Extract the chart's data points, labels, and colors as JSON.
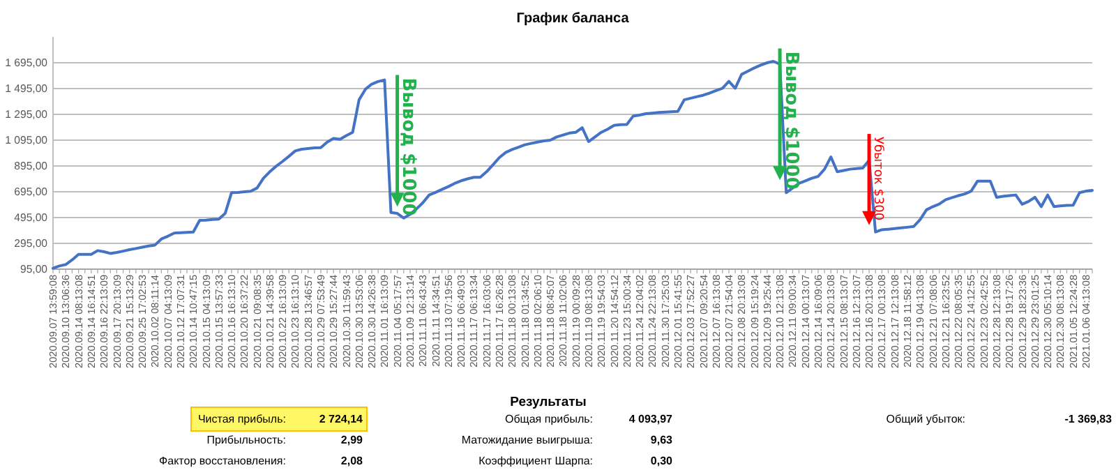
{
  "chart_data": [
    {
      "type": "line",
      "title": "График баланса",
      "categories": [
        "2020.09.07 13:59:08",
        null,
        "2020.09.10 13:06:36",
        null,
        "2020.09.14 08:13:08",
        null,
        "2020.09.14 16:14:51",
        null,
        "2020.09.16 22:13:09",
        null,
        "2020.09.17 20:13:09",
        null,
        "2020.09.21 15:13:29",
        null,
        "2020.09.25 17:02:53",
        null,
        "2020.10.02 08:11:14",
        null,
        "2020.10.07 04:13:09",
        null,
        "2020.10.12 17:07:31",
        null,
        "2020.10.14 10:47:15",
        null,
        "2020.10.15 04:13:09",
        null,
        "2020.10.15 13:57:33",
        null,
        "2020.10.16 16:13:10",
        null,
        "2020.10.20 16:37:22",
        null,
        "2020.10.21 09:08:35",
        null,
        "2020.10.21 14:39:58",
        null,
        "2020.10.22 16:13:09",
        null,
        "2020.10.23 16:13:10",
        null,
        "2020.10.28 13:46:57",
        null,
        "2020.10.29 07:53:49",
        null,
        "2020.10.29 15:27:44",
        null,
        "2020.10.30 11:59:43",
        null,
        "2020.10.30 13:53:06",
        null,
        "2020.10.30 14:26:38",
        null,
        "2020.11.01 16:13:09",
        null,
        "2020.11.04 05:17:57",
        null,
        "2020.11.09 12:13:14",
        null,
        "2020.11.11 06:43:43",
        null,
        "2020.11.11 14:34:51",
        null,
        "2020.11.13 07:19:56",
        null,
        "2020.11.16 06:49:03",
        null,
        "2020.11.17 06:13:34",
        null,
        "2020.11.17 16:03:06",
        null,
        "2020.11.17 16:26:28",
        null,
        "2020.11.18 00:13:08",
        null,
        "2020.11.18 01:34:52",
        null,
        "2020.11.18 02:06:10",
        null,
        "2020.11.18 08:45:07",
        null,
        "2020.11.18 11:02:06",
        null,
        "2020.11.19 00:09:28",
        null,
        "2020.11.19 08:13:08",
        null,
        "2020.11.19 19:54:03",
        null,
        "2020.11.20 14:54:12",
        null,
        "2020.11.23 15:00:34",
        null,
        "2020.11.24 12:04:02",
        null,
        "2020.11.24 22:13:08",
        null,
        "2020.11.30 17:25:03",
        null,
        "2020.12.01 15:41:55",
        null,
        "2020.12.03 17:52:27",
        null,
        "2020.12.07 09:20:54",
        null,
        "2020.12.07 16:13:08",
        null,
        "2020.12.07 21:54:04",
        null,
        "2020.12.08 20:13:08",
        null,
        "2020.12.09 15:19:24",
        null,
        "2020.12.09 19:25:44",
        null,
        "2020.12.10 12:13:08",
        null,
        "2020.12.11 09:00:34",
        null,
        "2020.12.14 00:13:07",
        null,
        "2020.12.14 16:09:06",
        null,
        "2020.12.14 20:13:08",
        null,
        "2020.12.15 08:13:07",
        null,
        "2020.12.16 12:13:07",
        null,
        "2020.12.16 20:13:08",
        null,
        "2020.12.17 00:13:08",
        null,
        "2020.12.17 12:13:08",
        null,
        "2020.12.18 11:58:12",
        null,
        "2020.12.19 04:13:08",
        null,
        "2020.12.21 07:08:06",
        null,
        "2020.12.21 16:23:52",
        null,
        "2020.12.22 08:05:35",
        null,
        "2020.12.22 14:12:55",
        null,
        "2020.12.23 02:42:52",
        null,
        "2020.12.28 12:13:08",
        null,
        "2020.12.28 19:17:26",
        null,
        "2020.12.29 18:23:36",
        null,
        "2020.12.29 23:01:25",
        null,
        "2020.12.30 05:10:14",
        null,
        "2020.12.30 08:13:08",
        null,
        "2021.01.05 12:24:28",
        null,
        "2021.01.06 04:13:08",
        null
      ],
      "series": [
        {
          "color": "#4472c4",
          "values": [
            102,
            120,
            131,
            167,
            210,
            210,
            210,
            239,
            230,
            217,
            225,
            235,
            246,
            255,
            265,
            275,
            282,
            329,
            350,
            375,
            378,
            380,
            383,
            473,
            475,
            480,
            483,
            527,
            688,
            690,
            695,
            699,
            724,
            800,
            850,
            893,
            930,
            970,
            1012,
            1025,
            1030,
            1035,
            1037,
            1080,
            1109,
            1102,
            1130,
            1156,
            1408,
            1490,
            1530,
            1550,
            1562,
            534,
            527,
            491,
            520,
            562,
            610,
            670,
            690,
            713,
            735,
            760,
            780,
            795,
            807,
            807,
            850,
            904,
            960,
            1000,
            1023,
            1040,
            1059,
            1070,
            1080,
            1090,
            1095,
            1120,
            1135,
            1150,
            1156,
            1192,
            1084,
            1120,
            1156,
            1180,
            1210,
            1215,
            1217,
            1282,
            1290,
            1300,
            1305,
            1310,
            1312,
            1315,
            1318,
            1408,
            1420,
            1432,
            1444,
            1460,
            1480,
            1497,
            1551,
            1497,
            1605,
            1630,
            1655,
            1677,
            1695,
            1706,
            1684,
            688,
            724,
            760,
            780,
            800,
            814,
            870,
            965,
            850,
            860,
            870,
            875,
            879,
            940,
            383,
            401,
            405,
            410,
            415,
            420,
            426,
            480,
            555,
            580,
            600,
            634,
            650,
            665,
            678,
            700,
            778,
            778,
            778,
            652,
            660,
            665,
            670,
            598,
            620,
            652,
            580,
            670,
            580,
            585,
            590,
            591,
            688,
            700,
            706
          ]
        }
      ],
      "ylim": [
        95,
        1895
      ],
      "yticks": [
        {
          "value": 95,
          "label": "95,00"
        },
        {
          "value": 295,
          "label": "295,00"
        },
        {
          "value": 495,
          "label": "495,00"
        },
        {
          "value": 695,
          "label": "695,00"
        },
        {
          "value": 895,
          "label": "895,00"
        },
        {
          "value": 1095,
          "label": "1 095,00"
        },
        {
          "value": 1295,
          "label": "1 295,00"
        },
        {
          "value": 1495,
          "label": "1 495,00"
        },
        {
          "value": 1695,
          "label": "1 695,00"
        }
      ],
      "grid": "y",
      "marker": "none",
      "line_style": "solid",
      "annotations": [
        {
          "text": "Вывод $1000",
          "x": "2020.11.04 05:17:57",
          "y": 580
        },
        {
          "text": "Вывод $1000",
          "x": "2020.12.10 12:13:08",
          "y": 785
        },
        {
          "text": "Убыток $300",
          "x": "2020.12.16 20:13:08",
          "y": 437
        }
      ]
    },
    {
      "type": "other",
      "title": "Результаты",
      "annotations": [
        "Чистая прибыль:",
        "2 724,14",
        "Прибыльность:",
        "2,99",
        "Фактор восстановления:",
        "2,08",
        "Общая прибыль:",
        "4 093,97",
        "Матожидание выигрыша:",
        "9,63",
        "Коэффициент Шарпа:",
        "0,30",
        "Общий убыток:",
        "-1 369,83"
      ]
    }
  ]
}
